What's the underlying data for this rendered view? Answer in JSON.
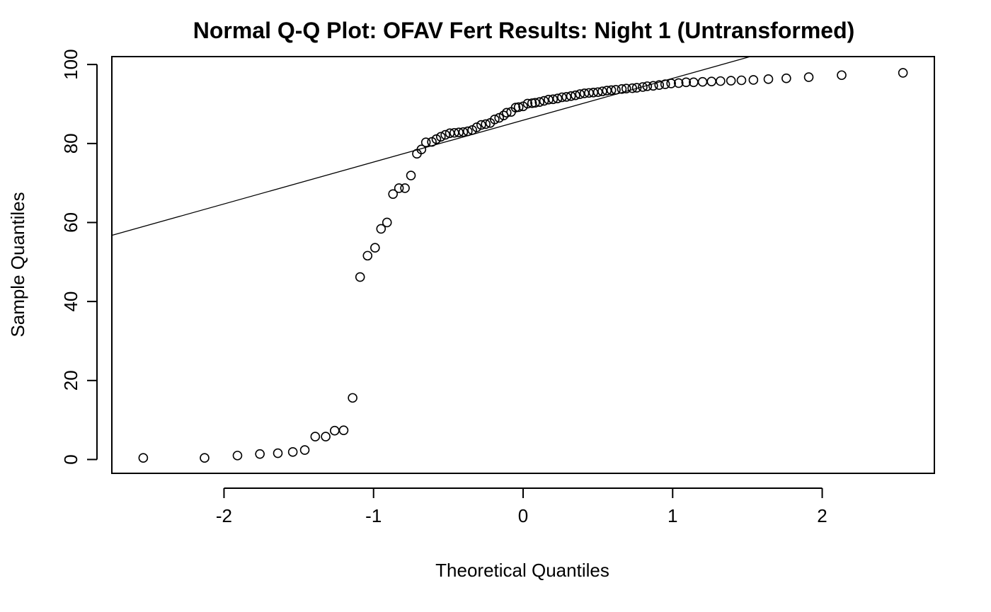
{
  "chart_data": {
    "type": "scatter",
    "title": "Normal Q-Q Plot: OFAV Fert Results: Night 1 (Untransformed)",
    "xlabel": "Theoretical Quantiles",
    "ylabel": "Sample Quantiles",
    "xlim": [
      -2.75,
      2.75
    ],
    "ylim": [
      -3.5,
      102
    ],
    "x_ticks": [
      -2,
      -1,
      0,
      1,
      2
    ],
    "x_tick_labels": [
      "-2",
      "-1",
      "0",
      "1",
      "2"
    ],
    "y_ticks": [
      0,
      20,
      40,
      60,
      80,
      100
    ],
    "y_tick_labels": [
      "0",
      "20",
      "40",
      "60",
      "80",
      "100"
    ],
    "grid": false,
    "legend": "none",
    "reference_line": {
      "slope": 10.6,
      "intercept": 85.9
    },
    "points": [
      [
        -2.54,
        0.4
      ],
      [
        -2.13,
        0.4
      ],
      [
        -1.91,
        1.0
      ],
      [
        -1.76,
        1.4
      ],
      [
        -1.64,
        1.6
      ],
      [
        -1.54,
        1.9
      ],
      [
        -1.46,
        2.4
      ],
      [
        -1.39,
        5.8
      ],
      [
        -1.32,
        5.8
      ],
      [
        -1.26,
        7.3
      ],
      [
        -1.2,
        7.4
      ],
      [
        -1.14,
        15.6
      ],
      [
        -1.09,
        46.2
      ],
      [
        -1.04,
        51.6
      ],
      [
        -0.99,
        53.6
      ],
      [
        -0.95,
        58.4
      ],
      [
        -0.91,
        60.0
      ],
      [
        -0.87,
        67.2
      ],
      [
        -0.83,
        68.7
      ],
      [
        -0.79,
        68.7
      ],
      [
        -0.75,
        71.9
      ],
      [
        -0.71,
        77.4
      ],
      [
        -0.68,
        78.5
      ],
      [
        -0.65,
        80.3
      ],
      [
        -0.61,
        80.4
      ],
      [
        -0.58,
        81.1
      ],
      [
        -0.55,
        81.7
      ],
      [
        -0.52,
        82.2
      ],
      [
        -0.49,
        82.6
      ],
      [
        -0.46,
        82.7
      ],
      [
        -0.43,
        82.8
      ],
      [
        -0.4,
        82.9
      ],
      [
        -0.37,
        83.1
      ],
      [
        -0.34,
        83.4
      ],
      [
        -0.31,
        84.1
      ],
      [
        -0.28,
        84.7
      ],
      [
        -0.25,
        84.9
      ],
      [
        -0.22,
        85.2
      ],
      [
        -0.19,
        86.1
      ],
      [
        -0.16,
        86.5
      ],
      [
        -0.13,
        87.1
      ],
      [
        -0.11,
        87.8
      ],
      [
        -0.08,
        88.0
      ],
      [
        -0.05,
        89.1
      ],
      [
        -0.03,
        89.2
      ],
      [
        0.0,
        89.4
      ],
      [
        0.03,
        90.1
      ],
      [
        0.06,
        90.2
      ],
      [
        0.08,
        90.3
      ],
      [
        0.11,
        90.5
      ],
      [
        0.14,
        90.8
      ],
      [
        0.17,
        91.1
      ],
      [
        0.2,
        91.2
      ],
      [
        0.23,
        91.4
      ],
      [
        0.26,
        91.7
      ],
      [
        0.29,
        91.8
      ],
      [
        0.32,
        92.0
      ],
      [
        0.35,
        92.2
      ],
      [
        0.38,
        92.5
      ],
      [
        0.41,
        92.7
      ],
      [
        0.44,
        92.8
      ],
      [
        0.47,
        92.9
      ],
      [
        0.5,
        93.0
      ],
      [
        0.53,
        93.2
      ],
      [
        0.56,
        93.4
      ],
      [
        0.59,
        93.5
      ],
      [
        0.62,
        93.6
      ],
      [
        0.66,
        93.8
      ],
      [
        0.69,
        93.9
      ],
      [
        0.73,
        94.0
      ],
      [
        0.76,
        94.1
      ],
      [
        0.8,
        94.3
      ],
      [
        0.83,
        94.5
      ],
      [
        0.87,
        94.6
      ],
      [
        0.91,
        94.8
      ],
      [
        0.95,
        95.0
      ],
      [
        0.99,
        95.2
      ],
      [
        1.04,
        95.3
      ],
      [
        1.09,
        95.5
      ],
      [
        1.14,
        95.5
      ],
      [
        1.2,
        95.6
      ],
      [
        1.26,
        95.7
      ],
      [
        1.32,
        95.8
      ],
      [
        1.39,
        95.9
      ],
      [
        1.46,
        96.0
      ],
      [
        1.54,
        96.1
      ],
      [
        1.64,
        96.3
      ],
      [
        1.76,
        96.5
      ],
      [
        1.91,
        96.8
      ],
      [
        2.13,
        97.3
      ],
      [
        2.54,
        97.9
      ]
    ]
  }
}
